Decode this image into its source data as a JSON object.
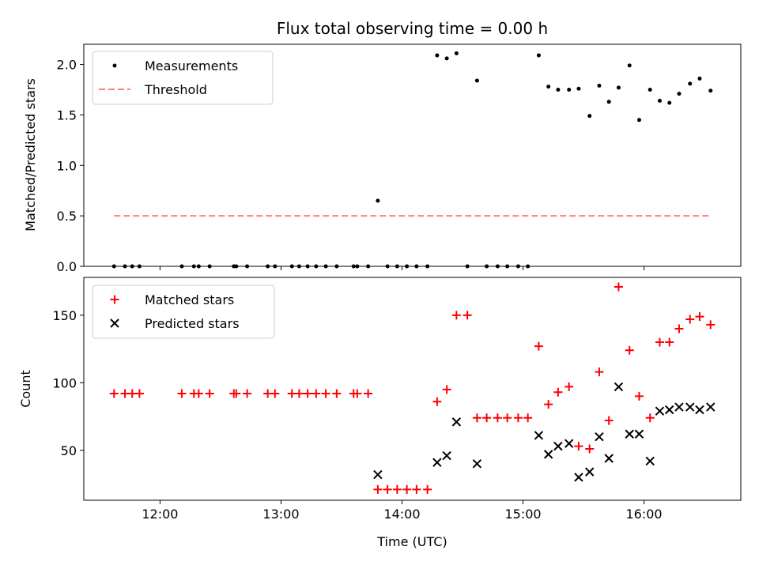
{
  "chart_data": [
    {
      "type": "scatter",
      "title": "Flux total observing time = 0.00 h",
      "xlabel": "",
      "ylabel": "Matched/Predicted stars",
      "xlim": [
        11.37,
        16.8
      ],
      "ylim": [
        0,
        2.2
      ],
      "x_ticks": [
        12,
        13,
        14,
        15,
        16
      ],
      "y_ticks": [
        0.0,
        0.5,
        1.0,
        1.5,
        2.0
      ],
      "y_tick_labels": [
        "0.0",
        "0.5",
        "1.0",
        "1.5",
        "2.0"
      ],
      "legend": {
        "position": "top-left",
        "entries": [
          "Measurements",
          "Threshold"
        ]
      },
      "series": [
        {
          "name": "Measurements",
          "color": "#000000",
          "marker": "dot",
          "x": [
            11.62,
            11.71,
            11.77,
            11.83,
            12.18,
            12.28,
            12.32,
            12.41,
            12.61,
            12.63,
            12.72,
            12.89,
            12.95,
            13.09,
            13.15,
            13.22,
            13.29,
            13.37,
            13.46,
            13.6,
            13.63,
            13.72,
            13.8,
            13.88,
            13.96,
            14.04,
            14.12,
            14.21,
            14.29,
            14.37,
            14.45,
            14.54,
            14.62,
            14.7,
            14.79,
            14.87,
            14.96,
            15.04,
            15.13,
            15.21,
            15.29,
            15.38,
            15.46,
            15.55,
            15.63,
            15.71,
            15.79,
            15.88,
            15.96,
            16.05,
            16.13,
            16.21,
            16.29,
            16.38,
            16.46,
            16.55
          ],
          "y": [
            0,
            0,
            0,
            0,
            0,
            0,
            0,
            0,
            0,
            0,
            0,
            0,
            0,
            0,
            0,
            0,
            0,
            0,
            0,
            0,
            0,
            0,
            0.65,
            0,
            0,
            0,
            0,
            0,
            2.09,
            2.06,
            2.11,
            0,
            1.84,
            0,
            0,
            0,
            0,
            0,
            2.09,
            1.78,
            1.75,
            1.75,
            1.76,
            1.49,
            1.79,
            1.63,
            1.77,
            1.99,
            1.45,
            1.75,
            1.64,
            1.62,
            1.71,
            1.81,
            1.86,
            1.74
          ]
        },
        {
          "name": "Threshold",
          "color": "#ff7f7f",
          "style": "dashed",
          "x": [
            11.62,
            16.55
          ],
          "y": [
            0.5,
            0.5
          ]
        }
      ]
    },
    {
      "type": "scatter",
      "title": "",
      "xlabel": "Time (UTC)",
      "ylabel": "Count",
      "xlim": [
        11.37,
        16.8
      ],
      "ylim": [
        13,
        178
      ],
      "x_ticks": [
        12,
        13,
        14,
        15,
        16
      ],
      "x_tick_labels": [
        "12:00",
        "13:00",
        "14:00",
        "15:00",
        "16:00"
      ],
      "y_ticks": [
        50,
        100,
        150
      ],
      "y_tick_labels": [
        "50",
        "100",
        "150"
      ],
      "legend": {
        "position": "top-left",
        "entries": [
          "Matched stars",
          "Predicted stars"
        ]
      },
      "series": [
        {
          "name": "Matched stars",
          "color": "#ff0000",
          "marker": "plus",
          "x": [
            11.62,
            11.71,
            11.77,
            11.83,
            12.18,
            12.28,
            12.32,
            12.41,
            12.61,
            12.63,
            12.72,
            12.89,
            12.95,
            13.09,
            13.15,
            13.22,
            13.29,
            13.37,
            13.46,
            13.6,
            13.63,
            13.72,
            13.8,
            13.88,
            13.96,
            14.04,
            14.12,
            14.21,
            14.29,
            14.37,
            14.45,
            14.54,
            14.62,
            14.7,
            14.79,
            14.87,
            14.96,
            15.04,
            15.13,
            15.21,
            15.29,
            15.38,
            15.46,
            15.55,
            15.63,
            15.71,
            15.79,
            15.88,
            15.96,
            16.05,
            16.13,
            16.21,
            16.29,
            16.38,
            16.46,
            16.55
          ],
          "y": [
            92,
            92,
            92,
            92,
            92,
            92,
            92,
            92,
            92,
            92,
            92,
            92,
            92,
            92,
            92,
            92,
            92,
            92,
            92,
            92,
            92,
            92,
            21,
            21,
            21,
            21,
            21,
            21,
            86,
            95,
            150,
            150,
            74,
            74,
            74,
            74,
            74,
            74,
            127,
            84,
            93,
            97,
            53,
            51,
            108,
            72,
            171,
            124,
            90,
            74,
            130,
            130,
            140,
            147,
            149,
            143
          ]
        },
        {
          "name": "Predicted stars",
          "color": "#000000",
          "marker": "x",
          "x": [
            13.8,
            14.29,
            14.37,
            14.45,
            14.62,
            15.13,
            15.21,
            15.29,
            15.38,
            15.46,
            15.55,
            15.63,
            15.71,
            15.79,
            15.88,
            15.96,
            16.05,
            16.13,
            16.21,
            16.29,
            16.38,
            16.46,
            16.55
          ],
          "y": [
            32,
            41,
            46,
            71,
            40,
            61,
            47,
            53,
            55,
            30,
            34,
            60,
            44,
            97,
            62,
            62,
            42,
            79,
            80,
            82,
            82,
            80,
            82
          ]
        }
      ]
    }
  ]
}
